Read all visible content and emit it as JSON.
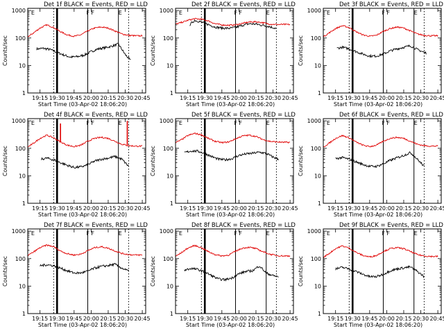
{
  "colors": {
    "events": "#000000",
    "lld": "#e00000"
  },
  "shared": {
    "ylabel": "Counts/sec",
    "xlabel": "Start Time (03-Apr-02 18:06:20)",
    "xticks": [
      "19:15",
      "19:30",
      "19:45",
      "20:00",
      "20:15",
      "20:30",
      "20:45"
    ],
    "yticks": [
      "1",
      "10",
      "100",
      "1000"
    ],
    "region_labels": [
      "E",
      "F",
      "F",
      "E"
    ]
  },
  "chart_data": [
    {
      "type": "line",
      "title": "Det 1f BLACK = Events, RED = LLD",
      "xlim": [
        19.07,
        20.8
      ],
      "ylim": [
        1,
        1200
      ],
      "yscale": "log",
      "xtick_values": [
        19.25,
        19.5,
        19.75,
        20.0,
        20.25,
        20.5,
        20.75
      ],
      "region_label_x": [
        19.12,
        19.93,
        20.0,
        20.4
      ],
      "markers": {
        "dotted": [
          19.45,
          20.55
        ],
        "solid": [
          19.95,
          20.4
        ],
        "thick": [
          19.5
        ]
      },
      "series": [
        {
          "name": "Events",
          "color": "#000000",
          "x": [
            19.2,
            19.3,
            19.4,
            19.5,
            19.6,
            19.7,
            19.8,
            19.9,
            20.0,
            20.1,
            20.2,
            20.3,
            20.4,
            20.5,
            20.58
          ],
          "y": [
            40,
            42,
            38,
            30,
            24,
            20,
            21,
            24,
            32,
            40,
            44,
            50,
            60,
            25,
            15
          ]
        },
        {
          "name": "LLD",
          "color": "#e00000",
          "x": [
            19.07,
            19.15,
            19.25,
            19.35,
            19.45,
            19.55,
            19.65,
            19.75,
            19.85,
            19.95,
            20.05,
            20.15,
            20.25,
            20.35,
            20.45,
            20.55,
            20.65,
            20.75
          ],
          "y": [
            110,
            150,
            230,
            300,
            240,
            170,
            130,
            115,
            130,
            180,
            230,
            250,
            230,
            180,
            140,
            125,
            120,
            120
          ]
        }
      ]
    },
    {
      "type": "line",
      "title": "Det 2f BLACK = Events, RED = LLD",
      "xlim": [
        19.07,
        20.8
      ],
      "ylim": [
        1,
        1200
      ],
      "yscale": "log",
      "xtick_values": [
        19.25,
        19.5,
        19.75,
        20.0,
        20.25,
        20.5,
        20.75
      ],
      "region_label_x": [
        19.12,
        19.93,
        20.0,
        20.4
      ],
      "markers": {
        "dotted": [
          19.45,
          20.55
        ],
        "solid": [
          19.95,
          20.4
        ],
        "thick": [
          19.5
        ]
      },
      "series": [
        {
          "name": "Events",
          "color": "#000000",
          "x": [
            19.28,
            19.35,
            19.45,
            19.55,
            19.65,
            19.75,
            19.85,
            19.95,
            20.05,
            20.15,
            20.25,
            20.35,
            20.45,
            20.55
          ],
          "y": [
            300,
            440,
            380,
            310,
            250,
            230,
            225,
            240,
            290,
            330,
            320,
            290,
            260,
            220
          ]
        },
        {
          "name": "LLD",
          "color": "#e00000",
          "x": [
            19.07,
            19.15,
            19.25,
            19.35,
            19.45,
            19.55,
            19.65,
            19.75,
            19.85,
            19.95,
            20.05,
            20.15,
            20.25,
            20.35,
            20.45,
            20.55,
            20.65,
            20.75
          ],
          "y": [
            320,
            360,
            440,
            500,
            480,
            420,
            330,
            300,
            290,
            300,
            340,
            380,
            390,
            360,
            320,
            310,
            310,
            310
          ]
        }
      ]
    },
    {
      "type": "line",
      "title": "Det 3f BLACK = Events, RED = LLD",
      "xlim": [
        19.07,
        20.8
      ],
      "ylim": [
        1,
        1200
      ],
      "yscale": "log",
      "xtick_values": [
        19.25,
        19.5,
        19.75,
        20.0,
        20.25,
        20.5,
        20.75
      ],
      "region_label_x": [
        19.12,
        19.93,
        20.0,
        20.4
      ],
      "markers": {
        "dotted": [
          19.45,
          20.55
        ],
        "solid": [
          19.95,
          20.4
        ],
        "thick": [
          19.5
        ]
      },
      "series": [
        {
          "name": "Events",
          "color": "#000000",
          "x": [
            19.27,
            19.35,
            19.45,
            19.55,
            19.65,
            19.75,
            19.85,
            19.95,
            20.05,
            20.15,
            20.25,
            20.35,
            20.45,
            20.58
          ],
          "y": [
            42,
            46,
            40,
            32,
            26,
            22,
            22,
            26,
            34,
            40,
            46,
            52,
            38,
            28
          ]
        },
        {
          "name": "LLD",
          "color": "#e00000",
          "x": [
            19.07,
            19.15,
            19.25,
            19.35,
            19.45,
            19.55,
            19.65,
            19.75,
            19.85,
            19.95,
            20.05,
            20.15,
            20.25,
            20.35,
            20.45,
            20.55,
            20.65,
            20.75
          ],
          "y": [
            110,
            150,
            220,
            280,
            240,
            170,
            130,
            115,
            125,
            175,
            220,
            250,
            230,
            180,
            140,
            125,
            120,
            120
          ]
        }
      ]
    },
    {
      "type": "line",
      "title": "Det 4f BLACK = Events, RED = LLD",
      "xlim": [
        19.07,
        20.8
      ],
      "ylim": [
        1,
        1200
      ],
      "yscale": "log",
      "xtick_values": [
        19.25,
        19.5,
        19.75,
        20.0,
        20.25,
        20.5,
        20.75
      ],
      "region_label_x": [
        19.12,
        19.93,
        20.0,
        20.4
      ],
      "markers": {
        "dotted": [
          19.45,
          20.55
        ],
        "solid": [
          19.95,
          20.4
        ],
        "thick": [
          19.5
        ]
      },
      "series": [
        {
          "name": "Events",
          "color": "#000000",
          "x": [
            19.27,
            19.35,
            19.45,
            19.55,
            19.65,
            19.75,
            19.85,
            19.95,
            20.05,
            20.15,
            20.25,
            20.35,
            20.45,
            20.55
          ],
          "y": [
            40,
            44,
            38,
            30,
            24,
            20,
            21,
            25,
            34,
            40,
            44,
            50,
            40,
            22
          ]
        },
        {
          "name": "LLD",
          "color": "#e00000",
          "x": [
            19.07,
            19.15,
            19.25,
            19.35,
            19.45,
            19.55,
            19.65,
            19.75,
            19.85,
            19.95,
            20.05,
            20.15,
            20.25,
            20.35,
            20.45,
            20.55,
            20.65,
            20.75
          ],
          "y": [
            110,
            150,
            230,
            300,
            240,
            170,
            130,
            115,
            130,
            180,
            230,
            250,
            230,
            180,
            140,
            125,
            120,
            120
          ]
        }
      ],
      "spikes": [
        {
          "x": 19.55,
          "y": 800
        },
        {
          "x": 20.53,
          "y": 1000
        }
      ]
    },
    {
      "type": "line",
      "title": "Det 5f BLACK = Events, RED = LLD",
      "xlim": [
        19.07,
        20.8
      ],
      "ylim": [
        1,
        1200
      ],
      "yscale": "log",
      "xtick_values": [
        19.25,
        19.5,
        19.75,
        20.0,
        20.25,
        20.5,
        20.75
      ],
      "region_label_x": [
        19.12,
        19.93,
        20.0,
        20.4
      ],
      "markers": {
        "dotted": [
          19.45,
          20.55
        ],
        "solid": [
          19.95,
          20.4
        ],
        "thick": [
          19.5
        ]
      },
      "series": [
        {
          "name": "Events",
          "color": "#000000",
          "x": [
            19.2,
            19.3,
            19.4,
            19.5,
            19.6,
            19.7,
            19.8,
            19.9,
            20.0,
            20.1,
            20.2,
            20.3,
            20.4,
            20.5,
            20.58
          ],
          "y": [
            70,
            80,
            78,
            65,
            50,
            40,
            38,
            42,
            55,
            62,
            66,
            72,
            65,
            48,
            40
          ]
        },
        {
          "name": "LLD",
          "color": "#e00000",
          "x": [
            19.07,
            19.15,
            19.25,
            19.35,
            19.45,
            19.55,
            19.65,
            19.75,
            19.85,
            19.95,
            20.05,
            20.15,
            20.25,
            20.35,
            20.45,
            20.55,
            20.65,
            20.75
          ],
          "y": [
            160,
            200,
            290,
            350,
            310,
            230,
            180,
            160,
            170,
            220,
            280,
            300,
            270,
            210,
            180,
            170,
            165,
            165
          ]
        }
      ]
    },
    {
      "type": "line",
      "title": "Det 6f BLACK = Events, RED = LLD",
      "xlim": [
        19.07,
        20.8
      ],
      "ylim": [
        1,
        1200
      ],
      "yscale": "log",
      "xtick_values": [
        19.25,
        19.5,
        19.75,
        20.0,
        20.25,
        20.5,
        20.75
      ],
      "region_label_x": [
        19.12,
        19.93,
        20.0,
        20.4
      ],
      "markers": {
        "dotted": [
          19.45,
          20.55
        ],
        "solid": [
          19.95,
          20.4
        ],
        "thick": [
          19.5
        ]
      },
      "series": [
        {
          "name": "Events",
          "color": "#000000",
          "x": [
            19.25,
            19.35,
            19.45,
            19.55,
            19.65,
            19.75,
            19.85,
            19.95,
            20.05,
            20.15,
            20.25,
            20.35,
            20.45,
            20.55
          ],
          "y": [
            42,
            46,
            40,
            32,
            26,
            22,
            22,
            27,
            36,
            45,
            55,
            70,
            40,
            22
          ]
        },
        {
          "name": "LLD",
          "color": "#e00000",
          "x": [
            19.07,
            19.15,
            19.25,
            19.35,
            19.45,
            19.55,
            19.65,
            19.75,
            19.85,
            19.95,
            20.05,
            20.15,
            20.25,
            20.35,
            20.45,
            20.55,
            20.65,
            20.75
          ],
          "y": [
            110,
            150,
            230,
            290,
            240,
            170,
            130,
            115,
            130,
            180,
            230,
            250,
            230,
            180,
            140,
            125,
            120,
            120
          ]
        }
      ]
    },
    {
      "type": "line",
      "title": "Det 7f BLACK = Events, RED = LLD",
      "xlim": [
        19.07,
        20.8
      ],
      "ylim": [
        1,
        1200
      ],
      "yscale": "log",
      "xtick_values": [
        19.25,
        19.5,
        19.75,
        20.0,
        20.25,
        20.5,
        20.75
      ],
      "region_label_x": [
        19.12,
        19.93,
        20.0,
        20.4
      ],
      "markers": {
        "dotted": [
          19.45,
          20.55
        ],
        "solid": [
          19.95,
          20.4
        ],
        "thick": [
          19.5
        ]
      },
      "series": [
        {
          "name": "Events",
          "color": "#000000",
          "x": [
            19.25,
            19.35,
            19.45,
            19.55,
            19.65,
            19.75,
            19.85,
            19.95,
            20.05,
            20.15,
            20.25,
            20.35,
            20.45,
            20.55
          ],
          "y": [
            55,
            60,
            55,
            45,
            36,
            30,
            30,
            35,
            45,
            52,
            56,
            62,
            45,
            35
          ]
        },
        {
          "name": "LLD",
          "color": "#e00000",
          "x": [
            19.07,
            19.15,
            19.25,
            19.35,
            19.45,
            19.55,
            19.65,
            19.75,
            19.85,
            19.95,
            20.05,
            20.15,
            20.25,
            20.35,
            20.45,
            20.55,
            20.65,
            20.75
          ],
          "y": [
            130,
            170,
            250,
            310,
            270,
            190,
            150,
            135,
            145,
            195,
            250,
            270,
            240,
            190,
            155,
            140,
            135,
            135
          ]
        }
      ]
    },
    {
      "type": "line",
      "title": "Det 8f BLACK = Events, RED = LLD",
      "xlim": [
        19.07,
        20.8
      ],
      "ylim": [
        1,
        1200
      ],
      "yscale": "log",
      "xtick_values": [
        19.25,
        19.5,
        19.75,
        20.0,
        20.25,
        20.5,
        20.75
      ],
      "region_label_x": [
        19.12,
        19.93,
        20.0,
        20.4
      ],
      "markers": {
        "dotted": [
          19.45,
          20.55
        ],
        "solid": [
          19.95,
          20.4
        ],
        "thick": [
          19.5
        ]
      },
      "series": [
        {
          "name": "Events",
          "color": "#000000",
          "x": [
            19.2,
            19.3,
            19.4,
            19.5,
            19.6,
            19.7,
            19.8,
            19.9,
            20.0,
            20.1,
            20.2,
            20.3,
            20.4,
            20.5,
            20.58
          ],
          "y": [
            38,
            44,
            40,
            32,
            24,
            18,
            17,
            20,
            28,
            34,
            36,
            55,
            30,
            24,
            22
          ]
        },
        {
          "name": "LLD",
          "color": "#e00000",
          "x": [
            19.07,
            19.15,
            19.25,
            19.35,
            19.45,
            19.55,
            19.65,
            19.75,
            19.85,
            19.95,
            20.05,
            20.15,
            20.25,
            20.35,
            20.45,
            20.55,
            20.65,
            20.75
          ],
          "y": [
            120,
            160,
            240,
            300,
            250,
            180,
            140,
            125,
            135,
            185,
            240,
            260,
            230,
            180,
            145,
            130,
            125,
            125
          ]
        }
      ]
    },
    {
      "type": "line",
      "title": "Det 9f BLACK = Events, RED = LLD",
      "xlim": [
        19.07,
        20.8
      ],
      "ylim": [
        1,
        1200
      ],
      "yscale": "log",
      "xtick_values": [
        19.25,
        19.5,
        19.75,
        20.0,
        20.25,
        20.5,
        20.75
      ],
      "region_label_x": [
        19.12,
        19.93,
        20.0,
        20.4
      ],
      "markers": {
        "dotted": [
          19.45,
          20.55
        ],
        "solid": [
          19.95,
          20.4
        ],
        "thick": [
          19.5
        ]
      },
      "series": [
        {
          "name": "Events",
          "color": "#000000",
          "x": [
            19.25,
            19.35,
            19.45,
            19.55,
            19.65,
            19.75,
            19.85,
            19.95,
            20.05,
            20.15,
            20.25,
            20.35,
            20.45,
            20.55
          ],
          "y": [
            42,
            48,
            42,
            34,
            27,
            22,
            22,
            27,
            36,
            42,
            46,
            50,
            34,
            22
          ]
        },
        {
          "name": "LLD",
          "color": "#e00000",
          "x": [
            19.07,
            19.15,
            19.25,
            19.35,
            19.45,
            19.55,
            19.65,
            19.75,
            19.85,
            19.95,
            20.05,
            20.15,
            20.25,
            20.35,
            20.45,
            20.55,
            20.65,
            20.75
          ],
          "y": [
            110,
            150,
            230,
            290,
            240,
            170,
            130,
            115,
            130,
            180,
            230,
            250,
            230,
            180,
            140,
            125,
            120,
            120
          ]
        }
      ]
    }
  ]
}
